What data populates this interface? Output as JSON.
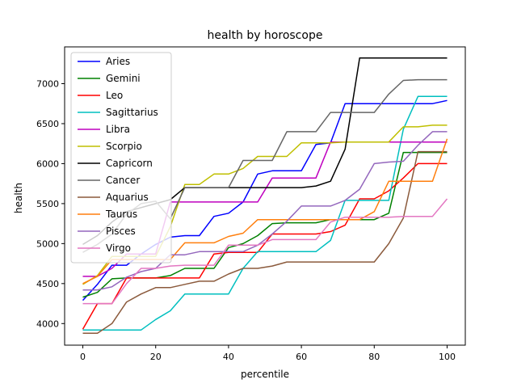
{
  "chart_data": {
    "type": "line",
    "title": "health by horoscope",
    "xlabel": "percentile",
    "ylabel": "health",
    "xlim": [
      -5,
      105
    ],
    "ylim": [
      3730,
      7460
    ],
    "x_ticks": [
      0,
      20,
      40,
      60,
      80,
      100
    ],
    "x_tick_labels": [
      "0",
      "20",
      "40",
      "60",
      "80",
      "100"
    ],
    "y_ticks": [
      4000,
      4500,
      5000,
      5500,
      6000,
      6500,
      7000
    ],
    "y_tick_labels": [
      "4000",
      "4500",
      "5000",
      "5500",
      "6000",
      "6500",
      "7000"
    ],
    "grid": false,
    "legend_position": "upper left",
    "x": [
      0,
      4,
      8,
      12,
      16,
      20,
      24,
      28,
      32,
      36,
      40,
      44,
      48,
      52,
      56,
      60,
      64,
      68,
      72,
      76,
      80,
      84,
      88,
      92,
      96,
      100
    ],
    "series": [
      {
        "name": "Aries",
        "color": "#0000ff",
        "values": [
          4290,
          4490,
          4730,
          4730,
          4870,
          4990,
          5080,
          5100,
          5100,
          5340,
          5380,
          5520,
          5870,
          5910,
          5910,
          5910,
          6240,
          6260,
          6750,
          6750,
          6750,
          6750,
          6750,
          6750,
          6750,
          6790
        ]
      },
      {
        "name": "Gemini",
        "color": "#008000",
        "values": [
          4330,
          4390,
          4560,
          4570,
          4570,
          4570,
          4600,
          4690,
          4690,
          4690,
          4950,
          5000,
          5100,
          5250,
          5260,
          5260,
          5260,
          5300,
          5300,
          5300,
          5300,
          5380,
          6140,
          6140,
          6140,
          6140
        ]
      },
      {
        "name": "Leo",
        "color": "#ff0000",
        "values": [
          3930,
          4250,
          4250,
          4570,
          4570,
          4570,
          4570,
          4570,
          4570,
          4870,
          4890,
          4890,
          4890,
          5120,
          5120,
          5120,
          5120,
          5150,
          5230,
          5560,
          5560,
          5660,
          5820,
          6000,
          6000,
          6000
        ]
      },
      {
        "name": "Sagittarius",
        "color": "#00bfbf",
        "values": [
          3920,
          3920,
          3920,
          3920,
          3920,
          4050,
          4160,
          4370,
          4370,
          4370,
          4370,
          4690,
          4900,
          4900,
          4900,
          4900,
          4900,
          5040,
          5540,
          5540,
          5540,
          5540,
          6430,
          6840,
          6840,
          6840
        ]
      },
      {
        "name": "Libra",
        "color": "#bf00bf",
        "values": [
          4590,
          4590,
          4690,
          4870,
          4870,
          4870,
          5520,
          5520,
          5520,
          5520,
          5520,
          5520,
          5520,
          5820,
          5820,
          5820,
          5820,
          6270,
          6270,
          6270,
          6270,
          6270,
          6270,
          6270,
          6270,
          6270
        ]
      },
      {
        "name": "Scorpio",
        "color": "#bfbf00",
        "values": [
          4490,
          4600,
          4840,
          4840,
          4840,
          4840,
          5210,
          5740,
          5740,
          5870,
          5870,
          5940,
          6090,
          6090,
          6090,
          6260,
          6260,
          6260,
          6270,
          6270,
          6270,
          6270,
          6460,
          6460,
          6480,
          6480
        ]
      },
      {
        "name": "Capricorn",
        "color": "#000000",
        "values": [
          4990,
          5100,
          5270,
          5400,
          5450,
          5500,
          5550,
          5700,
          5700,
          5700,
          5700,
          5700,
          5700,
          5700,
          5700,
          5700,
          5720,
          5780,
          6180,
          7320,
          7320,
          7320,
          7320,
          7320,
          7320,
          7320
        ]
      },
      {
        "name": "Cancer",
        "color": "#666666",
        "values": [
          4890,
          4990,
          5120,
          5370,
          5500,
          5530,
          5310,
          5700,
          5700,
          5700,
          5700,
          6040,
          6040,
          6040,
          6400,
          6400,
          6400,
          6640,
          6640,
          6640,
          6640,
          6870,
          7040,
          7050,
          7050,
          7050
        ]
      },
      {
        "name": "Aquarius",
        "color": "#8b5a3c",
        "values": [
          3880,
          3880,
          4000,
          4270,
          4370,
          4450,
          4450,
          4490,
          4530,
          4530,
          4620,
          4690,
          4690,
          4720,
          4770,
          4770,
          4770,
          4770,
          4770,
          4770,
          4770,
          5000,
          5320,
          6150,
          6150,
          6150
        ]
      },
      {
        "name": "Taurus",
        "color": "#ff7f0e",
        "values": [
          4500,
          4590,
          4800,
          4800,
          4800,
          4800,
          4800,
          5010,
          5010,
          5010,
          5090,
          5130,
          5300,
          5300,
          5300,
          5300,
          5300,
          5300,
          5300,
          5300,
          5400,
          5780,
          5780,
          5780,
          5780,
          6310
        ]
      },
      {
        "name": "Pisces",
        "color": "#9467bd",
        "values": [
          4420,
          4420,
          4460,
          4580,
          4650,
          4690,
          4860,
          4860,
          4900,
          4900,
          4900,
          4900,
          4980,
          5120,
          5280,
          5470,
          5470,
          5470,
          5540,
          5680,
          6000,
          6020,
          6030,
          6230,
          6400,
          6400
        ]
      },
      {
        "name": "Virgo",
        "color": "#e377c2",
        "values": [
          4250,
          4250,
          4250,
          4500,
          4690,
          4690,
          4720,
          4730,
          4730,
          4730,
          4980,
          4980,
          4980,
          5050,
          5050,
          5050,
          5050,
          5270,
          5330,
          5330,
          5330,
          5330,
          5340,
          5340,
          5340,
          5560
        ]
      }
    ]
  }
}
